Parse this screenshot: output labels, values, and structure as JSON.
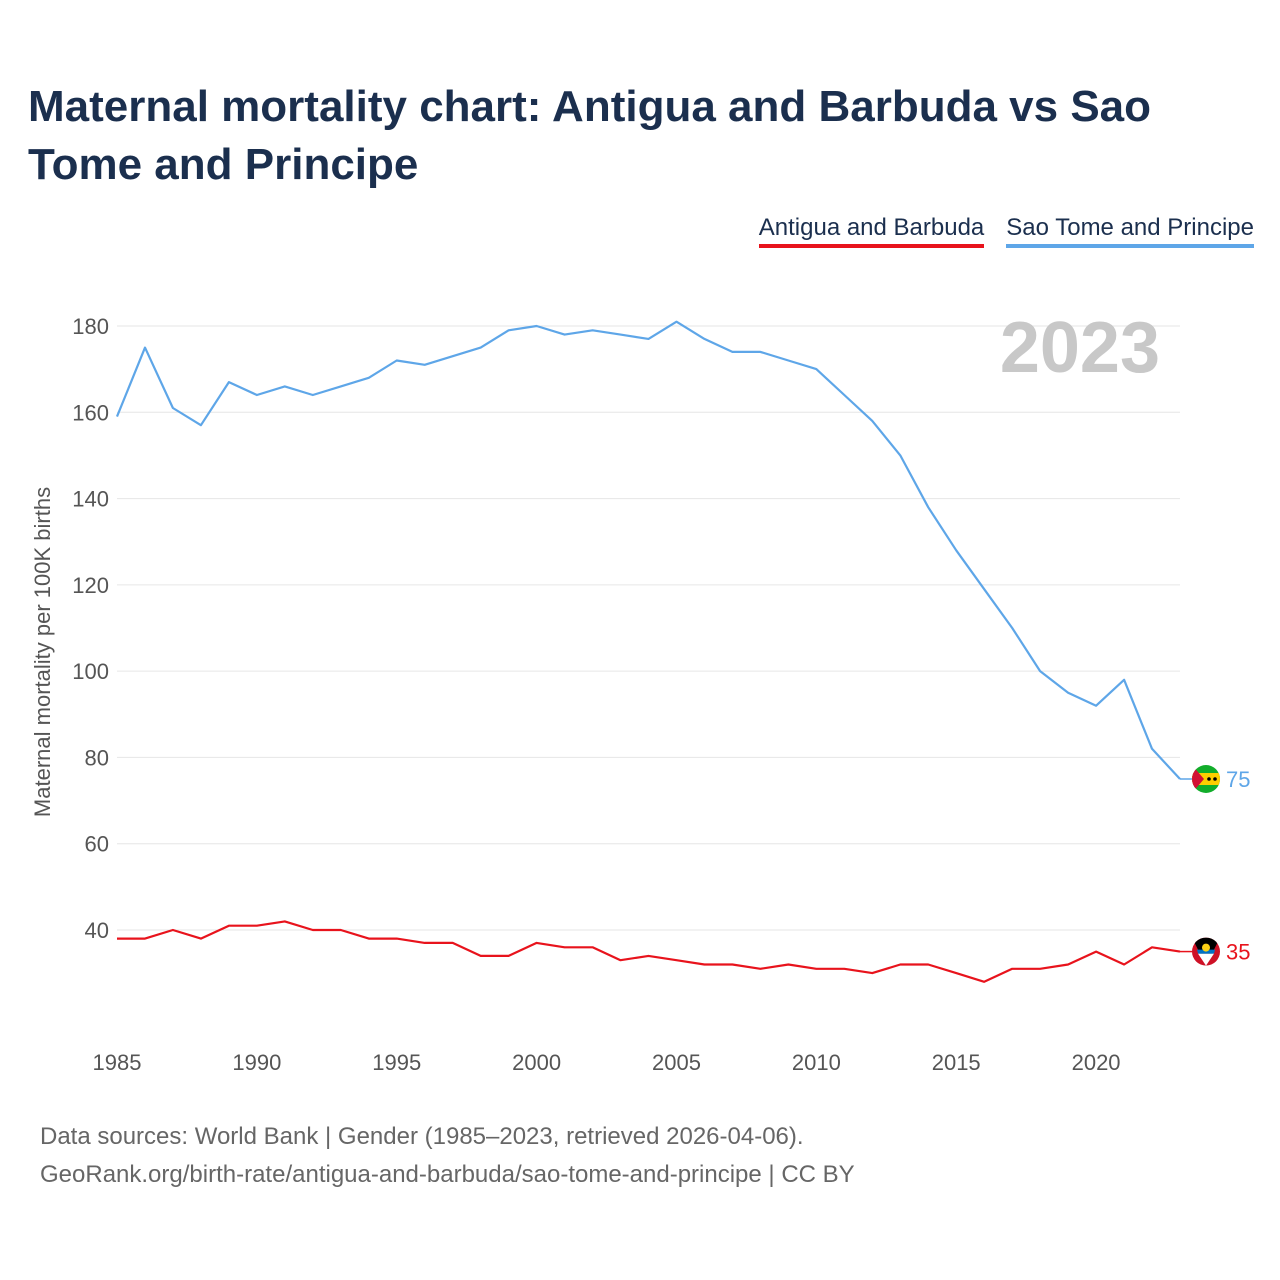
{
  "chart_data": {
    "type": "line",
    "title": "Maternal mortality chart: Antigua and Barbuda vs Sao Tome and Principe",
    "ylabel": "Maternal mortality per 100K births",
    "xlabel": "",
    "current_year_label": "2023",
    "xlim": [
      1985,
      2023
    ],
    "ylim": [
      20,
      190
    ],
    "yticks": [
      40,
      60,
      80,
      100,
      120,
      140,
      160,
      180
    ],
    "xticks": [
      1985,
      1990,
      1995,
      2000,
      2005,
      2010,
      2015,
      2020
    ],
    "x": [
      1985,
      1986,
      1987,
      1988,
      1989,
      1990,
      1991,
      1992,
      1993,
      1994,
      1995,
      1996,
      1997,
      1998,
      1999,
      2000,
      2001,
      2002,
      2003,
      2004,
      2005,
      2006,
      2007,
      2008,
      2009,
      2010,
      2011,
      2012,
      2013,
      2014,
      2015,
      2016,
      2017,
      2018,
      2019,
      2020,
      2021,
      2022,
      2023
    ],
    "series": [
      {
        "name": "Antigua and Barbuda",
        "color": "#e8131c",
        "end_label": "35",
        "flag": "antigua-and-barbuda-flag",
        "values": [
          38,
          38,
          40,
          38,
          41,
          41,
          42,
          40,
          40,
          38,
          38,
          37,
          37,
          34,
          34,
          37,
          36,
          36,
          33,
          34,
          33,
          32,
          32,
          31,
          32,
          31,
          31,
          30,
          32,
          32,
          30,
          28,
          31,
          31,
          32,
          35,
          32,
          36,
          35
        ]
      },
      {
        "name": "Sao Tome and Principe",
        "color": "#5ea6e8",
        "end_label": "75",
        "flag": "sao-tome-and-principe-flag",
        "values": [
          159,
          175,
          161,
          157,
          167,
          164,
          166,
          164,
          166,
          168,
          172,
          171,
          173,
          175,
          179,
          180,
          178,
          179,
          178,
          177,
          181,
          177,
          174,
          174,
          172,
          170,
          164,
          158,
          150,
          138,
          128,
          119,
          110,
          100,
          95,
          92,
          98,
          82,
          75
        ]
      }
    ]
  },
  "footer": {
    "source": "Data sources: World Bank | Gender (1985–2023, retrieved 2026-04-06).",
    "url": "GeoRank.org/birth-rate/antigua-and-barbuda/sao-tome-and-principe | CC BY"
  }
}
